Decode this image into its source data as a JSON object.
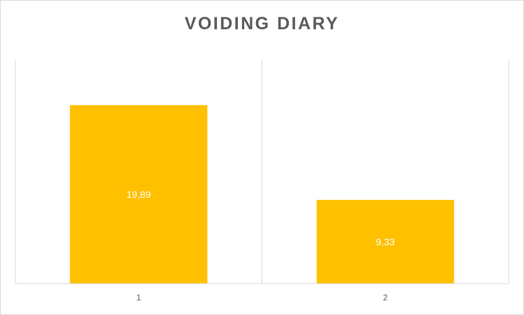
{
  "chart_data": {
    "type": "bar",
    "title": "VOIDING DIARY",
    "categories": [
      "1",
      "2"
    ],
    "values": [
      19.89,
      9.33
    ],
    "data_labels": [
      "19,89",
      "9,33"
    ],
    "xlabel": "",
    "ylabel": "",
    "ylim": [
      0,
      25
    ],
    "grid": false,
    "legend": "none",
    "bar_color": "#FFC000",
    "axis_color": "#d9d9d9"
  }
}
